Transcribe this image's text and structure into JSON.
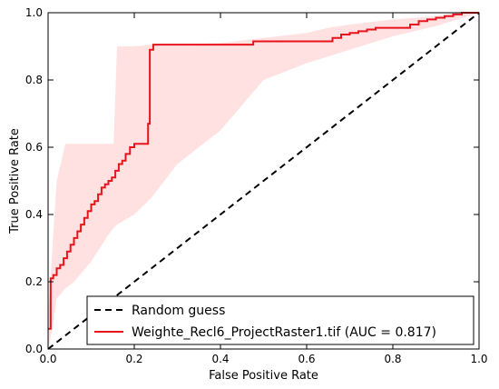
{
  "chart_data": {
    "type": "line",
    "title": "",
    "xlabel": "False Positive Rate",
    "ylabel": "True Positive Rate",
    "xlim": [
      0.0,
      1.0
    ],
    "ylim": [
      0.0,
      1.0
    ],
    "xticks": [
      "0.0",
      "0.2",
      "0.4",
      "0.6",
      "0.8",
      "1.0"
    ],
    "yticks": [
      "0.0",
      "0.2",
      "0.4",
      "0.6",
      "0.8",
      "1.0"
    ],
    "grid": false,
    "legend": {
      "placement": "bottom-right"
    },
    "series": [
      {
        "name": "Random guess",
        "style": "dashed",
        "color": "#000000",
        "x": [
          0.0,
          1.0
        ],
        "y": [
          0.0,
          1.0
        ]
      },
      {
        "name": "Weighte_Recl6_ProjectRaster1.tif (AUC = 0.817)",
        "style": "step",
        "color": "#e8141c",
        "x": [
          0.0,
          0.006,
          0.006,
          0.012,
          0.012,
          0.02,
          0.02,
          0.028,
          0.028,
          0.036,
          0.036,
          0.044,
          0.044,
          0.052,
          0.052,
          0.06,
          0.06,
          0.068,
          0.068,
          0.076,
          0.076,
          0.084,
          0.084,
          0.092,
          0.092,
          0.1,
          0.1,
          0.108,
          0.108,
          0.116,
          0.116,
          0.124,
          0.124,
          0.132,
          0.132,
          0.14,
          0.14,
          0.148,
          0.148,
          0.156,
          0.156,
          0.164,
          0.164,
          0.172,
          0.172,
          0.18,
          0.18,
          0.19,
          0.19,
          0.2,
          0.2,
          0.232,
          0.232,
          0.236,
          0.236,
          0.244,
          0.244,
          0.476,
          0.476,
          0.66,
          0.66,
          0.68,
          0.68,
          0.7,
          0.7,
          0.72,
          0.72,
          0.74,
          0.74,
          0.76,
          0.76,
          0.84,
          0.84,
          0.86,
          0.86,
          0.88,
          0.88,
          0.9,
          0.9,
          0.92,
          0.92,
          0.94,
          0.94,
          0.96,
          0.96,
          1.0
        ],
        "y": [
          0.06,
          0.06,
          0.21,
          0.21,
          0.22,
          0.22,
          0.24,
          0.24,
          0.25,
          0.25,
          0.27,
          0.27,
          0.29,
          0.29,
          0.31,
          0.31,
          0.33,
          0.33,
          0.35,
          0.35,
          0.37,
          0.37,
          0.39,
          0.39,
          0.41,
          0.41,
          0.43,
          0.43,
          0.44,
          0.44,
          0.46,
          0.46,
          0.48,
          0.48,
          0.49,
          0.49,
          0.5,
          0.5,
          0.51,
          0.51,
          0.53,
          0.53,
          0.55,
          0.55,
          0.56,
          0.56,
          0.58,
          0.58,
          0.6,
          0.6,
          0.61,
          0.61,
          0.67,
          0.67,
          0.89,
          0.89,
          0.905,
          0.905,
          0.915,
          0.915,
          0.925,
          0.925,
          0.935,
          0.935,
          0.94,
          0.94,
          0.945,
          0.945,
          0.95,
          0.95,
          0.955,
          0.955,
          0.965,
          0.965,
          0.975,
          0.975,
          0.98,
          0.98,
          0.985,
          0.985,
          0.99,
          0.99,
          0.995,
          0.995,
          1.0,
          1.0
        ]
      }
    ],
    "confidence_band": {
      "color": "#ffc8c8",
      "x": [
        0.0,
        0.01,
        0.02,
        0.04,
        0.06,
        0.08,
        0.1,
        0.12,
        0.14,
        0.152,
        0.16,
        0.2,
        0.24,
        0.3,
        0.4,
        0.5,
        0.6,
        0.65,
        0.7,
        0.8,
        0.9,
        0.95,
        1.0
      ],
      "upper": [
        0.1,
        0.3,
        0.5,
        0.61,
        0.61,
        0.61,
        0.61,
        0.61,
        0.61,
        0.61,
        0.9,
        0.9,
        0.905,
        0.905,
        0.91,
        0.925,
        0.94,
        0.955,
        0.965,
        0.98,
        0.99,
        1.0,
        1.0
      ],
      "lower": [
        0.0,
        0.06,
        0.15,
        0.18,
        0.2,
        0.23,
        0.26,
        0.3,
        0.34,
        0.36,
        0.37,
        0.4,
        0.45,
        0.55,
        0.65,
        0.8,
        0.85,
        0.87,
        0.89,
        0.93,
        0.96,
        0.98,
        1.0
      ]
    }
  }
}
